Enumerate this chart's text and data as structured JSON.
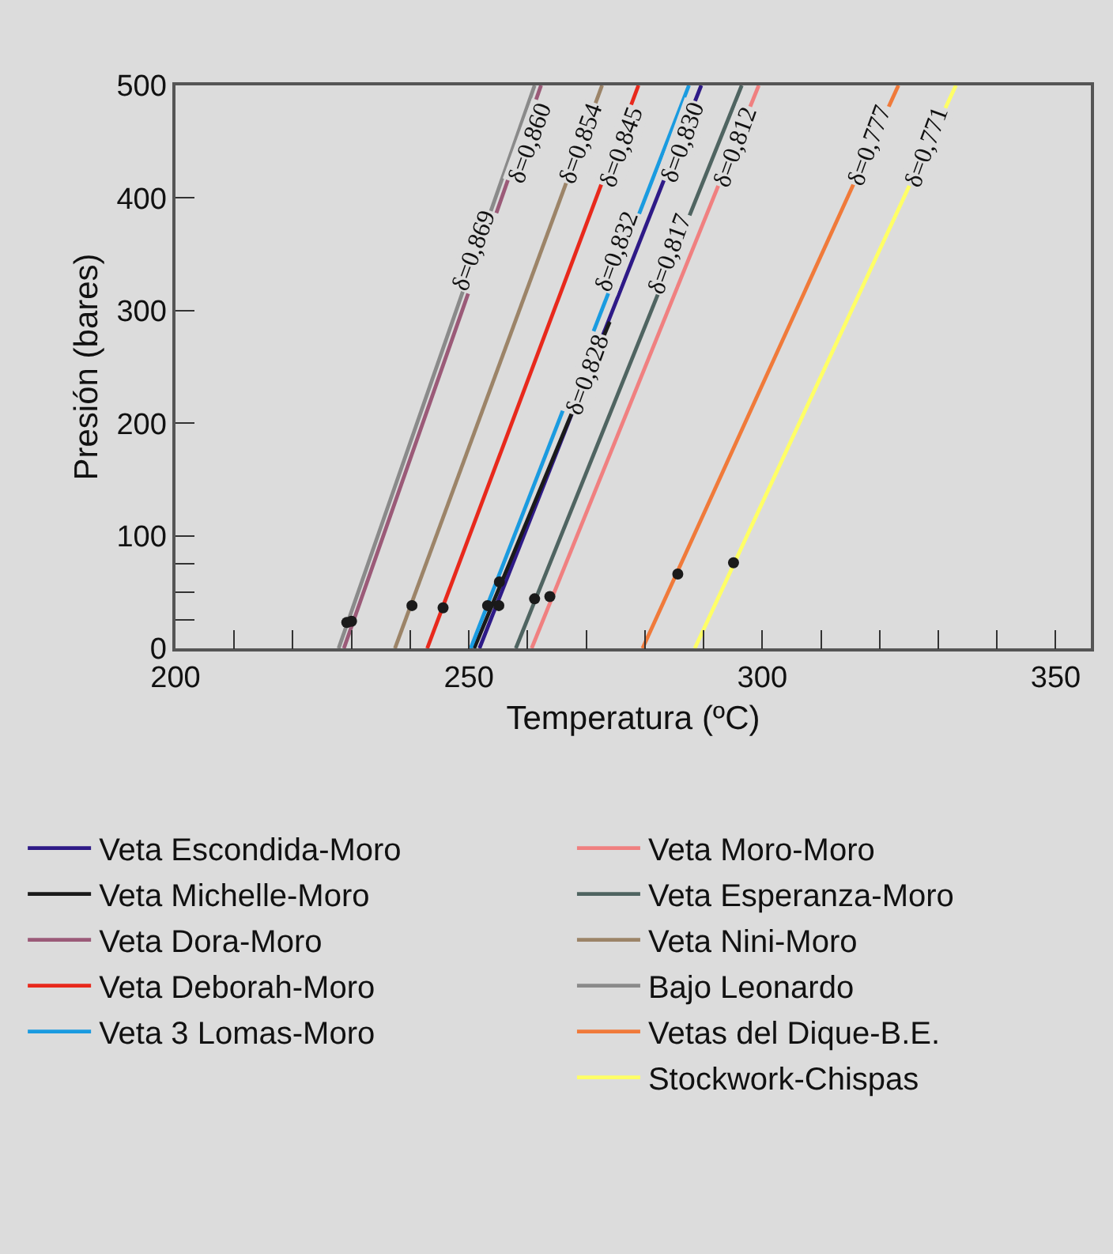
{
  "chart_data": {
    "type": "line",
    "xlabel": "Temperatura (ºC)",
    "ylabel": "Presión (bares)",
    "xlim": [
      200,
      356
    ],
    "ylim": [
      0,
      500
    ],
    "xticks": [
      200,
      {
        "value": 210,
        "label": null
      },
      {
        "value": 220,
        "label": null
      },
      {
        "value": 230,
        "label": null
      },
      {
        "value": 240,
        "label": null
      },
      250,
      {
        "value": 260,
        "label": null
      },
      {
        "value": 270,
        "label": null
      },
      {
        "value": 280,
        "label": null
      },
      {
        "value": 290,
        "label": null
      },
      300,
      {
        "value": 310,
        "label": null
      },
      {
        "value": 320,
        "label": null
      },
      {
        "value": 330,
        "label": null
      },
      {
        "value": 340,
        "label": null
      },
      350
    ],
    "yticks": [
      0,
      {
        "value": 25,
        "label": null
      },
      {
        "value": 50,
        "label": null
      },
      {
        "value": 75,
        "label": null
      },
      100,
      200,
      300,
      400,
      500
    ],
    "grid": false,
    "legend": "bottom",
    "line_style": "solid",
    "marker": "none",
    "series": [
      {
        "name": "Veta Escondida-Moro",
        "color": "#2e1a87",
        "x": [
          251.8,
          289.6
        ],
        "values": [
          0,
          500
        ]
      },
      {
        "name": "Veta Michelle-Moro",
        "color": "#1a1a1a",
        "x": [
          250.9,
          274.0
        ],
        "values": [
          0,
          290
        ]
      },
      {
        "name": "Veta Dora-Moro",
        "color": "#9b5a78",
        "x": [
          228.7,
          262.3
        ],
        "values": [
          0,
          500
        ]
      },
      {
        "name": "Veta Deborah-Moro",
        "color": "#e8291c",
        "x": [
          242.9,
          278.9
        ],
        "values": [
          0,
          500
        ]
      },
      {
        "name": "Veta 3 Lomas-Moro",
        "color": "#1a9be0",
        "x": [
          250.3,
          287.5
        ],
        "values": [
          0,
          500
        ]
      },
      {
        "name": "Veta Moro-Moro",
        "color": "#f08080",
        "x": [
          260.7,
          299.4
        ],
        "values": [
          0,
          500
        ]
      },
      {
        "name": "Veta Esperanza-Moro",
        "color": "#4f6461",
        "x": [
          258.0,
          296.5
        ],
        "values": [
          0,
          500
        ]
      },
      {
        "name": "Veta Nini-Moro",
        "color": "#9c8468",
        "x": [
          237.4,
          272.7
        ],
        "values": [
          0,
          500
        ]
      },
      {
        "name": "Bajo Leonardo",
        "color": "#8a8a8a",
        "x": [
          227.8,
          261.2
        ],
        "values": [
          0,
          500
        ]
      },
      {
        "name": "Vetas del Dique-B.E.",
        "color": "#f07a3a",
        "x": [
          279.6,
          323.2
        ],
        "values": [
          0,
          500
        ]
      },
      {
        "name": "Stockwork-Chispas",
        "color": "#ffff66",
        "x": [
          288.5,
          333.0
        ],
        "values": [
          0,
          500
        ]
      },
      {
        "type": "scatter",
        "marker": "circle",
        "color": "#1a1a1a",
        "x": [
          229.2,
          230.0,
          240.3,
          245.6,
          253.2,
          255.1,
          255.2,
          261.2,
          263.8,
          285.6,
          295.1
        ],
        "values": [
          23,
          24,
          38,
          36,
          38,
          38,
          59,
          44,
          46,
          66,
          76
        ]
      }
    ],
    "annotations": [
      {
        "text": "δ=0,869",
        "x": 251.0,
        "y": 353
      },
      {
        "text": "δ=0,860",
        "x": 260.5,
        "y": 449
      },
      {
        "text": "δ=0,854",
        "x": 269.2,
        "y": 449
      },
      {
        "text": "δ=0,845",
        "x": 276.0,
        "y": 445
      },
      {
        "text": "δ=0,832",
        "x": 275.4,
        "y": 353
      },
      {
        "text": "δ=0,828",
        "x": 270.5,
        "y": 243
      },
      {
        "text": "δ=0,830",
        "x": 286.5,
        "y": 449
      },
      {
        "text": "δ=0,817",
        "x": 284.3,
        "y": 351
      },
      {
        "text": "δ=0,812",
        "x": 295.4,
        "y": 445
      },
      {
        "text": "δ=0,777",
        "x": 318.5,
        "y": 447
      },
      {
        "text": "δ=0,771",
        "x": 328.0,
        "y": 445
      }
    ]
  }
}
